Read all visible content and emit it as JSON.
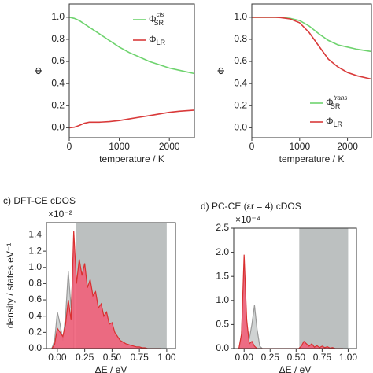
{
  "chart_data": [
    {
      "type": "line",
      "xlabel": "temperature / K",
      "ylabel": "Φ",
      "legend": "upper right",
      "x": [
        0,
        100,
        200,
        300,
        400,
        500,
        600,
        800,
        1000,
        1200,
        1400,
        1600,
        1800,
        2000,
        2200,
        2500
      ],
      "xlim": [
        0,
        2500
      ],
      "xticks": [
        0,
        1000,
        2000
      ],
      "ylim": [
        -0.09,
        1.12
      ],
      "yticks": [
        {
          "value": 0,
          "label": "0.0"
        },
        0.2,
        0.4,
        0.6,
        0.8,
        {
          "value": 1,
          "label": "1.0"
        }
      ],
      "series": [
        {
          "name": "Φ",
          "subscript": "SR",
          "superscript": "cis",
          "color": "#6ed36e",
          "values": [
            1.0,
            0.99,
            0.97,
            0.94,
            0.91,
            0.88,
            0.85,
            0.79,
            0.73,
            0.68,
            0.64,
            0.6,
            0.57,
            0.54,
            0.52,
            0.49
          ]
        },
        {
          "name": "Φ",
          "subscript": "LR",
          "color": "#d93a3a",
          "values": [
            0.0,
            0.005,
            0.02,
            0.04,
            0.05,
            0.05,
            0.05,
            0.055,
            0.065,
            0.08,
            0.095,
            0.11,
            0.125,
            0.14,
            0.15,
            0.16
          ]
        }
      ]
    },
    {
      "type": "line",
      "xlabel": "temperature / K",
      "ylabel": "Φ",
      "legend": "lower right",
      "x": [
        0,
        100,
        200,
        300,
        400,
        500,
        600,
        800,
        1000,
        1200,
        1400,
        1600,
        1800,
        2000,
        2200,
        2500
      ],
      "xlim": [
        0,
        2500
      ],
      "xticks": [
        0,
        1000,
        2000
      ],
      "ylim": [
        -0.09,
        1.12
      ],
      "yticks": [
        {
          "value": 0,
          "label": "0.0"
        },
        0.2,
        0.4,
        0.6,
        0.8,
        {
          "value": 1,
          "label": "1.0"
        }
      ],
      "series": [
        {
          "name": "Φ",
          "subscript": "SR",
          "superscript": "trans",
          "color": "#6ed36e",
          "values": [
            1,
            1,
            1,
            1,
            1,
            1,
            0.998,
            0.99,
            0.97,
            0.92,
            0.85,
            0.79,
            0.75,
            0.73,
            0.71,
            0.69
          ]
        },
        {
          "name": "Φ",
          "subscript": "LR",
          "color": "#d93a3a",
          "values": [
            1,
            1,
            1,
            1,
            1,
            1,
            0.997,
            0.985,
            0.95,
            0.86,
            0.74,
            0.62,
            0.55,
            0.5,
            0.47,
            0.44
          ]
        }
      ]
    },
    {
      "type": "area",
      "title": "c) DFT-CE cDOS",
      "multiplier": "×10⁻²",
      "xlabel": "ΔE / eV",
      "ylabel": "density / states eV⁻¹",
      "shade": [
        0.17,
        1.0
      ],
      "shade_color": "#bcc0c0",
      "x": [
        -0.05,
        -0.025,
        0,
        0.025,
        0.05,
        0.075,
        0.1,
        0.125,
        0.15,
        0.175,
        0.2,
        0.225,
        0.25,
        0.275,
        0.3,
        0.325,
        0.35,
        0.375,
        0.4,
        0.425,
        0.45,
        0.475,
        0.5,
        0.525,
        0.55,
        0.575,
        0.6,
        0.625,
        0.65,
        0.675,
        0.7,
        0.725,
        0.75,
        0.775,
        0.8,
        0.825,
        0.85,
        0.875,
        0.9,
        0.925,
        0.95
      ],
      "xlim": [
        -0.1,
        1.08
      ],
      "xticks": [
        {
          "value": 0,
          "label": "0.00"
        },
        {
          "value": 0.25,
          "label": "0.25"
        },
        {
          "value": 0.5,
          "label": "0.50"
        },
        {
          "value": 0.75,
          "label": "0.75"
        },
        {
          "value": 1,
          "label": "1.00"
        }
      ],
      "ylim": [
        0,
        1.55
      ],
      "yticks": [
        {
          "value": 0,
          "label": "0.0"
        },
        0.2,
        0.4,
        0.6,
        0.8,
        {
          "value": 1,
          "label": "1.0"
        },
        1.2,
        1.4
      ],
      "series": [
        {
          "color": "#a9aeae",
          "values": [
            0,
            0.1,
            0.45,
            0.3,
            0.1,
            0.4,
            0.95,
            0.5,
            1.2,
            null,
            null,
            null,
            null,
            null,
            null,
            null,
            null,
            null,
            null,
            null,
            null,
            null,
            null,
            null,
            null,
            null,
            null,
            null,
            null,
            null,
            null,
            null,
            null,
            null,
            null,
            null,
            null,
            null,
            null,
            null,
            null
          ]
        },
        {
          "color": "#f0607a",
          "values": [
            0,
            0.05,
            0.25,
            0.2,
            0.15,
            0.3,
            0.6,
            0.35,
            1.45,
            0.8,
            1.1,
            0.9,
            1.05,
            0.75,
            0.85,
            0.65,
            0.7,
            0.5,
            0.55,
            0.4,
            0.45,
            0.3,
            0.32,
            0.2,
            0.15,
            0.1,
            0.08,
            0.06,
            0.05,
            0.04,
            0.03,
            0.02,
            0.02,
            0.01,
            0.01,
            0,
            0,
            0,
            0,
            0,
            0
          ]
        }
      ]
    },
    {
      "type": "area",
      "title": "d) PC-CE (εr = 4) cDOS",
      "multiplier": "×10⁻⁴",
      "xlabel": "ΔE / eV",
      "shade": [
        0.53,
        1.0
      ],
      "shade_color": "#bcc0c0",
      "x": [
        -0.05,
        -0.025,
        0,
        0.025,
        0.05,
        0.075,
        0.1,
        0.125,
        0.15,
        0.175,
        0.2,
        0.225,
        0.25,
        0.275,
        0.3,
        0.325,
        0.35,
        0.375,
        0.4,
        0.425,
        0.45,
        0.475,
        0.5,
        0.525,
        0.55,
        0.575,
        0.6,
        0.625,
        0.65,
        0.675,
        0.7,
        0.725,
        0.75,
        0.775,
        0.8,
        0.825,
        0.85,
        0.875,
        0.9,
        0.925,
        0.95
      ],
      "xlim": [
        -0.1,
        1.08
      ],
      "xticks": [
        {
          "value": 0,
          "label": "0.00"
        },
        {
          "value": 0.25,
          "label": "0.25"
        },
        {
          "value": 0.5,
          "label": "0.50"
        },
        {
          "value": 0.75,
          "label": "0.75"
        },
        {
          "value": 1,
          "label": "1.00"
        }
      ],
      "ylim": [
        0,
        2.5
      ],
      "yticks": [
        {
          "value": 0,
          "label": "0.0"
        },
        0.5,
        {
          "value": 1,
          "label": "1.0"
        },
        1.5,
        {
          "value": 2,
          "label": "2.0"
        },
        2.5
      ],
      "series": [
        {
          "color": "#a9aeae",
          "values": [
            0,
            0.3,
            1.7,
            0.5,
            0.2,
            0.5,
            0.9,
            0.4,
            0.05,
            0,
            null,
            null,
            null,
            null,
            null,
            null,
            null,
            null,
            null,
            null,
            null,
            null,
            null,
            null,
            null,
            null,
            null,
            null,
            null,
            null,
            null,
            null,
            null,
            null,
            null,
            null,
            null,
            null,
            null,
            null,
            null
          ]
        },
        {
          "color": "#f0607a",
          "values": [
            0,
            0.3,
            1.95,
            0.6,
            0.1,
            0.15,
            0.05,
            0,
            0,
            0,
            0,
            0,
            0,
            0,
            0,
            0,
            0,
            0,
            0,
            0,
            0,
            0,
            0,
            0,
            0.05,
            0.15,
            0.1,
            0.05,
            0.1,
            0.03,
            0.06,
            0.02,
            0.05,
            0.02,
            0.04,
            0.01,
            0.02,
            0,
            0,
            0,
            0
          ]
        }
      ]
    }
  ]
}
